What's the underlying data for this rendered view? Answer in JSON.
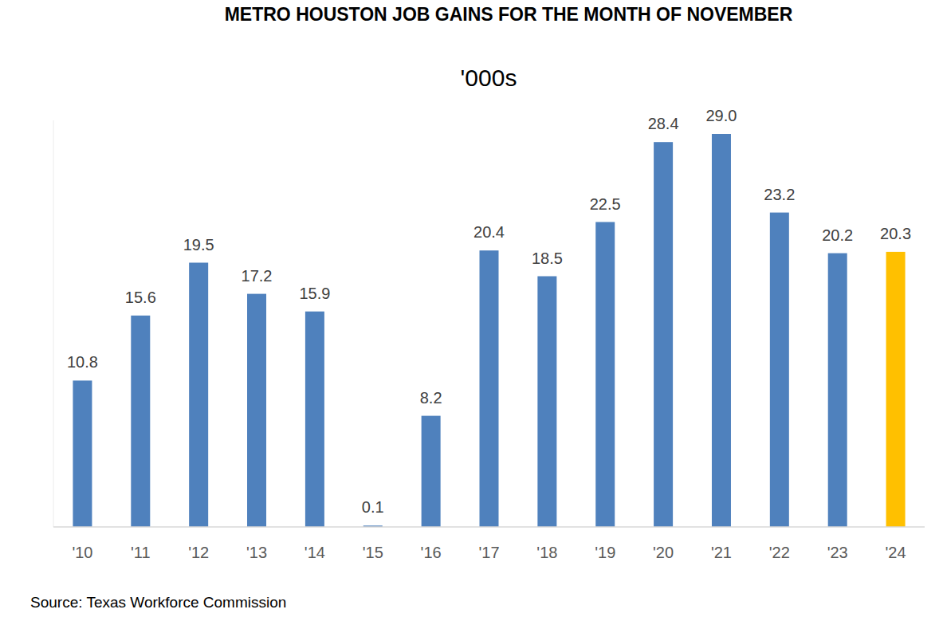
{
  "chart_data": {
    "type": "bar",
    "title": "METRO HOUSTON JOB GAINS FOR THE MONTH OF NOVEMBER",
    "subtitle": "'000s",
    "source": "Source: Texas Workforce Commission",
    "categories": [
      "'10",
      "'11",
      "'12",
      "'13",
      "'14",
      "'15",
      "'16",
      "'17",
      "'18",
      "'19",
      "'20",
      "'21",
      "'22",
      "'23",
      "'24"
    ],
    "values": [
      10.8,
      15.6,
      19.5,
      17.2,
      15.9,
      0.1,
      8.2,
      20.4,
      18.5,
      22.5,
      28.4,
      29.0,
      23.2,
      20.2,
      20.3
    ],
    "value_labels": [
      "10.8",
      "15.6",
      "19.5",
      "17.2",
      "15.9",
      "0.1",
      "8.2",
      "20.4",
      "18.5",
      "22.5",
      "28.4",
      "29.0",
      "23.2",
      "20.2",
      "20.3"
    ],
    "colors": [
      "#4f81bd",
      "#4f81bd",
      "#4f81bd",
      "#4f81bd",
      "#4f81bd",
      "#4f81bd",
      "#4f81bd",
      "#4f81bd",
      "#4f81bd",
      "#4f81bd",
      "#4f81bd",
      "#4f81bd",
      "#4f81bd",
      "#4f81bd",
      "#ffc000"
    ],
    "ylim": [
      0,
      30
    ],
    "grid": false,
    "data_labels": true,
    "tick_labels": "x"
  }
}
